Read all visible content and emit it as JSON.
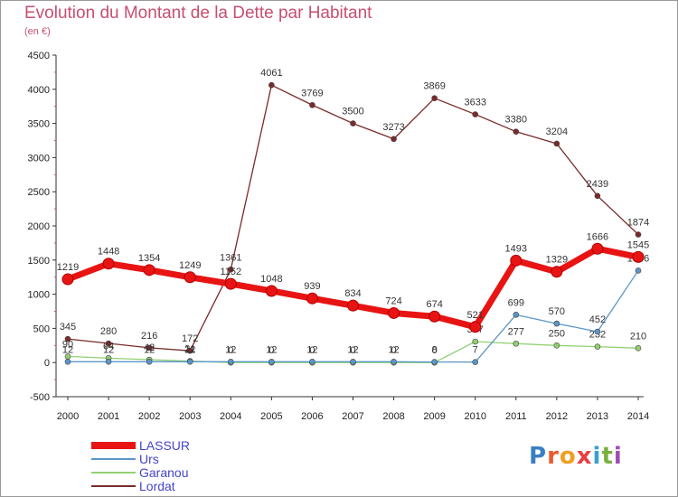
{
  "header": {
    "title": "Evolution du Montant de la Dette par Habitant",
    "subtitle": "(en €)"
  },
  "logo": {
    "text": "Proxiti",
    "letter_colors": [
      "#3a7fc4",
      "#e85c2c",
      "#f0a020",
      "#e84040",
      "#3aa0d0",
      "#78b040",
      "#9a50b0"
    ]
  },
  "chart_data": {
    "type": "line",
    "x": [
      "2000",
      "2001",
      "2002",
      "2003",
      "2004",
      "2005",
      "2006",
      "2007",
      "2008",
      "2009",
      "2010",
      "2011",
      "2012",
      "2013",
      "2014"
    ],
    "ylim": [
      -500,
      4500
    ],
    "yticks": [
      "-500",
      "0",
      "500",
      "1000",
      "1500",
      "2000",
      "2500",
      "3000",
      "3500",
      "4000",
      "4500"
    ],
    "grid": false,
    "legend_position": "bottom-left",
    "series": [
      {
        "name": "Lordat",
        "color": "#7a2a2a",
        "values": [
          345,
          280,
          216,
          172,
          1361,
          4061,
          3769,
          3500,
          3273,
          3869,
          3633,
          3380,
          3204,
          2439,
          1874
        ],
        "labels": [
          "345",
          "280",
          "216",
          "172",
          "1361",
          "4061",
          "3769",
          "3500",
          "3273",
          "3869",
          "3633",
          "3380",
          "3204",
          "2439",
          "1874"
        ]
      },
      {
        "name": "Garanou",
        "color": "#90d070",
        "values": [
          90,
          64,
          42,
          21,
          0,
          0,
          0,
          0,
          0,
          0,
          307,
          277,
          250,
          232,
          210
        ],
        "labels": [
          "90",
          "64",
          "42",
          "21",
          "0",
          "0",
          "0",
          "0",
          "0",
          "0",
          "307",
          "277",
          "250",
          "232",
          "210"
        ]
      },
      {
        "name": "Urs",
        "color": "#5a96c8",
        "values": [
          12,
          12,
          12,
          12,
          12,
          12,
          12,
          12,
          12,
          8,
          7,
          699,
          570,
          452,
          1346
        ],
        "labels": [
          "12",
          "12",
          "12",
          "12",
          "12",
          "12",
          "12",
          "12",
          "12",
          "8",
          "7",
          "699",
          "570",
          "452",
          "1346"
        ]
      },
      {
        "name": "LASSUR",
        "color": "#e81414",
        "values": [
          1219,
          1448,
          1354,
          1249,
          1152,
          1048,
          939,
          834,
          724,
          674,
          521,
          1493,
          1329,
          1666,
          1545
        ],
        "labels": [
          "1219",
          "1448",
          "1354",
          "1249",
          "1152",
          "1048",
          "939",
          "834",
          "724",
          "674",
          "521",
          "1493",
          "1329",
          "1666",
          "1545"
        ]
      }
    ],
    "legend": [
      {
        "name": "LASSUR",
        "color": "#e81414",
        "text_color": "#4444cc"
      },
      {
        "name": "Urs",
        "color": "#5a96c8",
        "text_color": "#4444cc"
      },
      {
        "name": "Garanou",
        "color": "#90d070",
        "text_color": "#4444cc"
      },
      {
        "name": "Lordat",
        "color": "#7a2a2a",
        "text_color": "#4444cc"
      }
    ]
  }
}
